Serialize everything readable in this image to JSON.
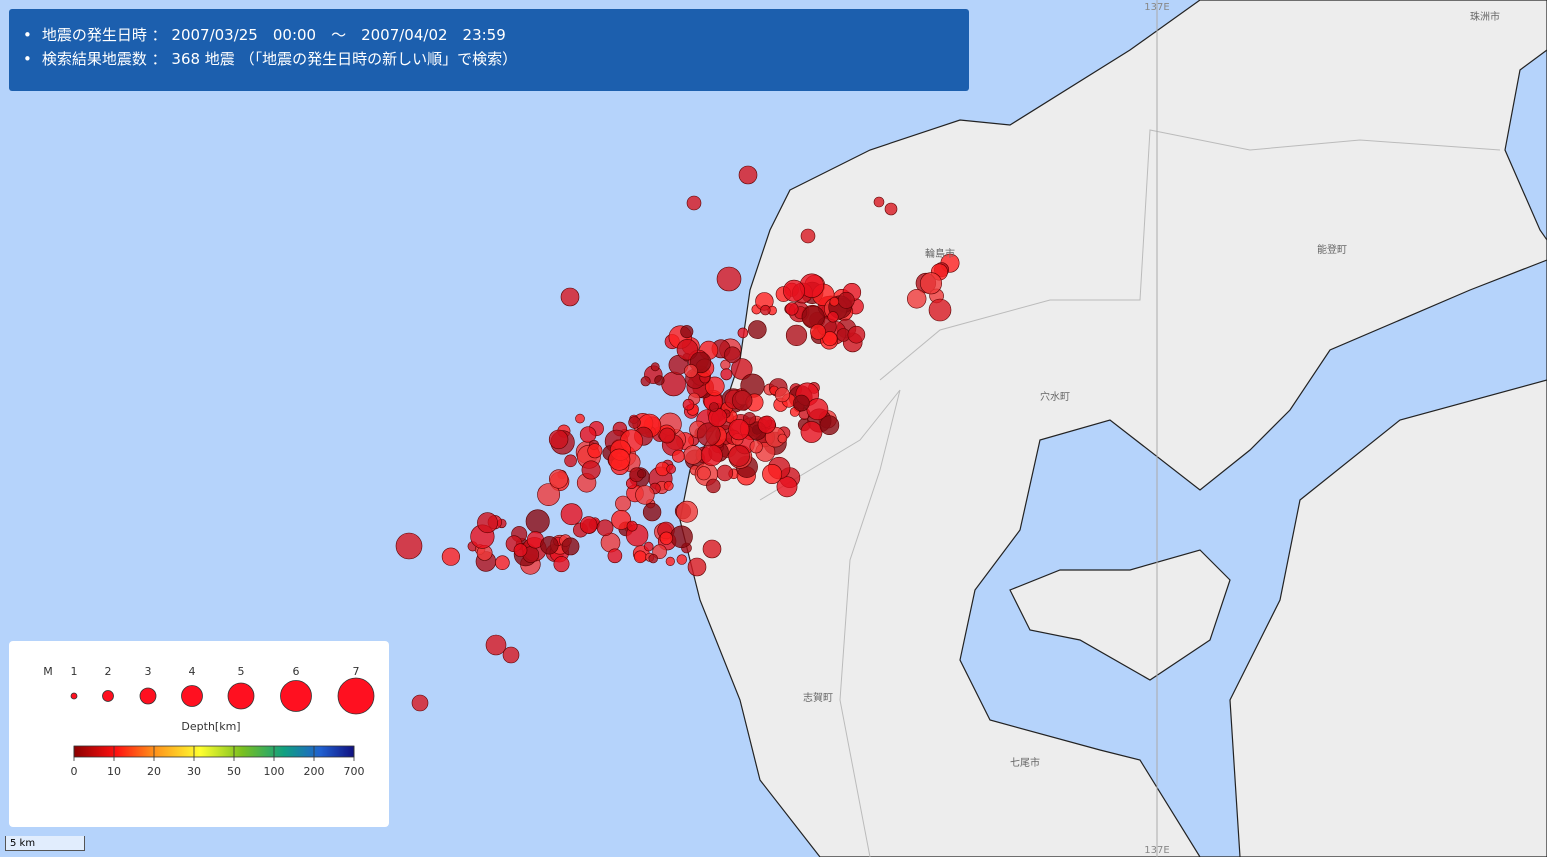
{
  "header": {
    "lines": [
      "地震の発生日時 ： 2007/03/25　00:00　～　2007/04/02　23:59",
      "検索結果地震数 ： 368 地震 （「地震の発生日時の新しい順」で検索）"
    ]
  },
  "map_labels": [
    "珠洲市",
    "輪島市",
    "能登町",
    "穴水町",
    "志賀町",
    "七尾市"
  ],
  "meridian_label": "137E",
  "legend": {
    "magnitude_title": "M",
    "magnitudes": [
      1,
      2,
      3,
      4,
      5,
      6,
      7
    ],
    "depth_title": "Depth[km]",
    "depth_ticks": [
      0,
      10,
      20,
      30,
      50,
      100,
      200,
      700
    ]
  },
  "scale_bar": "5 km"
}
